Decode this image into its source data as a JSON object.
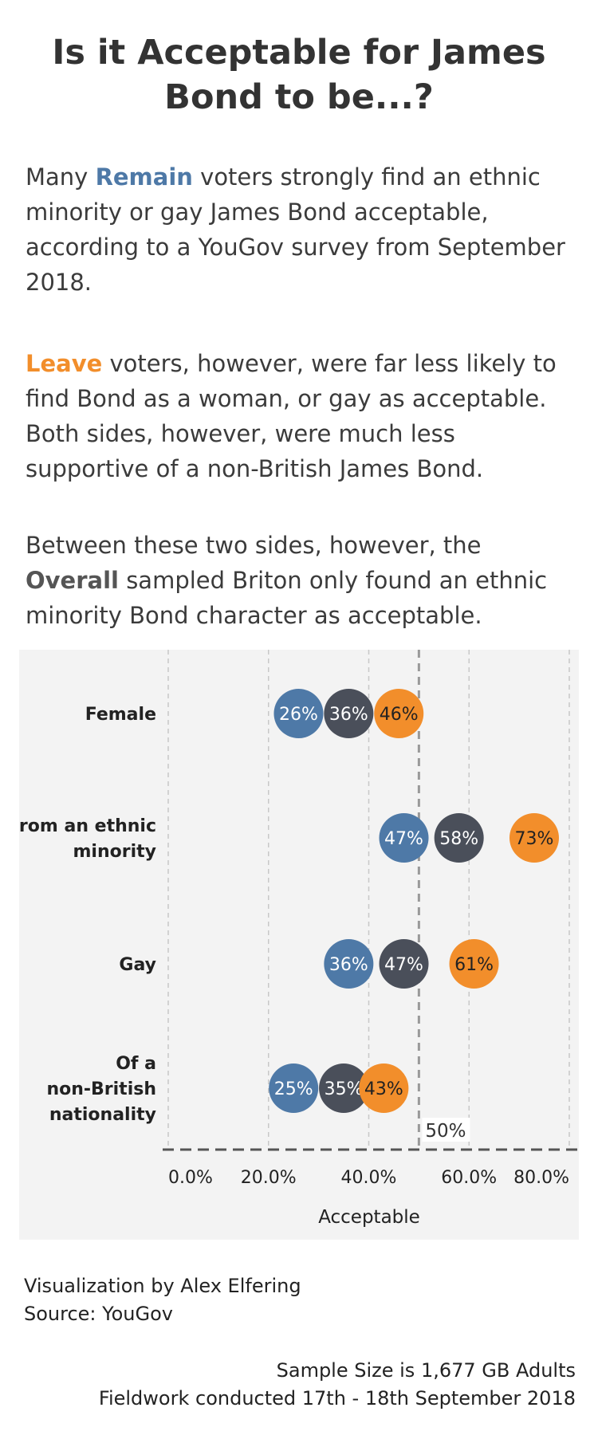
{
  "title": "Is it Acceptable for James Bond to be...?",
  "intro": {
    "p1": {
      "before": "Many ",
      "keyword": "Remain",
      "after": " voters strongly find an ethnic minority or gay James Bond acceptable, according to a YouGov survey from September 2018."
    },
    "p2": {
      "keyword": "Leave",
      "after": " voters, however, were far less likely to find Bond as a woman, or gay as acceptable. Both sides, however, were much less supportive of a non-British James Bond."
    },
    "p3": {
      "before": "Between these two sides, however, the ",
      "keyword": "Overall",
      "after": " sampled Briton only found an ethnic minority Bond character as acceptable."
    }
  },
  "colors": {
    "remain": "#4e79a7",
    "overall": "#4a4f5a",
    "leave": "#f28e2b",
    "panel_bg": "#f3f3f3",
    "gridline": "#c8c8c8",
    "reference": "#999999",
    "axis": "#555555"
  },
  "chart_data": {
    "type": "scatter",
    "title": "",
    "categories": [
      "Female",
      "From an ethnic minority",
      "Gay",
      "Of a non-British nationality"
    ],
    "category_label_lines": [
      [
        "Female"
      ],
      [
        "From an ethnic",
        "minority"
      ],
      [
        "Gay"
      ],
      [
        "Of a",
        "non-British",
        "nationality"
      ]
    ],
    "series": [
      {
        "key": "remain",
        "values": [
          26,
          47,
          36,
          25
        ],
        "labels": [
          "26%",
          "47%",
          "36%",
          "25%"
        ]
      },
      {
        "key": "overall",
        "values": [
          36,
          58,
          47,
          35
        ],
        "labels": [
          "36%",
          "58%",
          "47%",
          "35%"
        ]
      },
      {
        "key": "leave",
        "values": [
          46,
          73,
          61,
          43
        ],
        "labels": [
          "46%",
          "73%",
          "61%",
          "43%"
        ]
      }
    ],
    "xlabel": "Acceptable",
    "ylabel": "",
    "xlim": [
      0,
      80
    ],
    "xticks": [
      0,
      20,
      40,
      60,
      80
    ],
    "xtick_labels": [
      "0.0%",
      "20.0%",
      "40.0%",
      "60.0%",
      "80.0%"
    ],
    "reference_line": {
      "value": 50,
      "label": "50%"
    },
    "grid": true,
    "legend": "none"
  },
  "footer": {
    "credit": "Visualization by Alex Elfering",
    "source": "Source: YouGov",
    "sample": "Sample Size is 1,677 GB Adults",
    "fieldwork": "Fieldwork conducted 17th - 18th September 2018"
  }
}
